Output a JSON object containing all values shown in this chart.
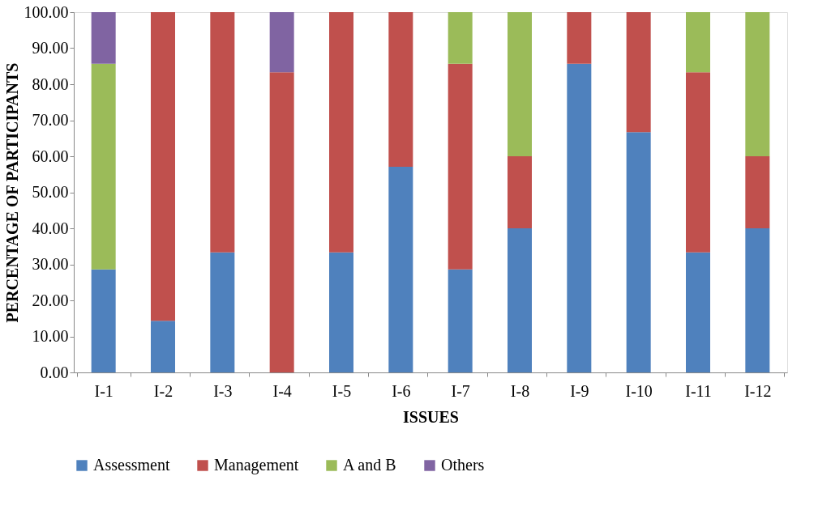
{
  "chart_data": {
    "type": "bar",
    "stacked": true,
    "xlabel": "ISSUES",
    "ylabel": "PERCENTAGE OF PARTICIPANTS",
    "categories": [
      "I-1",
      "I-2",
      "I-3",
      "I-4",
      "I-5",
      "I-6",
      "I-7",
      "I-8",
      "I-9",
      "I-10",
      "I-11",
      "I-12"
    ],
    "series": [
      {
        "name": "Assessment",
        "color": "#4f81bd",
        "values": [
          28.6,
          14.3,
          33.3,
          0,
          33.3,
          57.1,
          28.6,
          40,
          85.7,
          66.7,
          33.3,
          40
        ]
      },
      {
        "name": "Management",
        "color": "#c0504d",
        "values": [
          0,
          85.7,
          66.7,
          83.3,
          66.7,
          42.9,
          57.1,
          20,
          14.3,
          33.3,
          50,
          20
        ]
      },
      {
        "name": "A and B",
        "color": "#9bbb59",
        "values": [
          57.1,
          0,
          0,
          0,
          0,
          0,
          14.3,
          40,
          0,
          0,
          16.7,
          40
        ]
      },
      {
        "name": "Others",
        "color": "#8064a2",
        "values": [
          14.3,
          0,
          0,
          16.7,
          0,
          0,
          0,
          0,
          0,
          0,
          0,
          0
        ]
      }
    ],
    "ylim": [
      0,
      100
    ],
    "yticks": [
      {
        "value": 0,
        "label": "0.00"
      },
      {
        "value": 10,
        "label": "10.00"
      },
      {
        "value": 20,
        "label": "20.00"
      },
      {
        "value": 30,
        "label": "30.00"
      },
      {
        "value": 40,
        "label": "40.00"
      },
      {
        "value": 50,
        "label": "50.00"
      },
      {
        "value": 60,
        "label": "60.00"
      },
      {
        "value": 70,
        "label": "70.00"
      },
      {
        "value": 80,
        "label": "80.00"
      },
      {
        "value": 90,
        "label": "90.00"
      },
      {
        "value": 100,
        "label": "100.00"
      }
    ],
    "grid": false,
    "legend": "bottom"
  }
}
